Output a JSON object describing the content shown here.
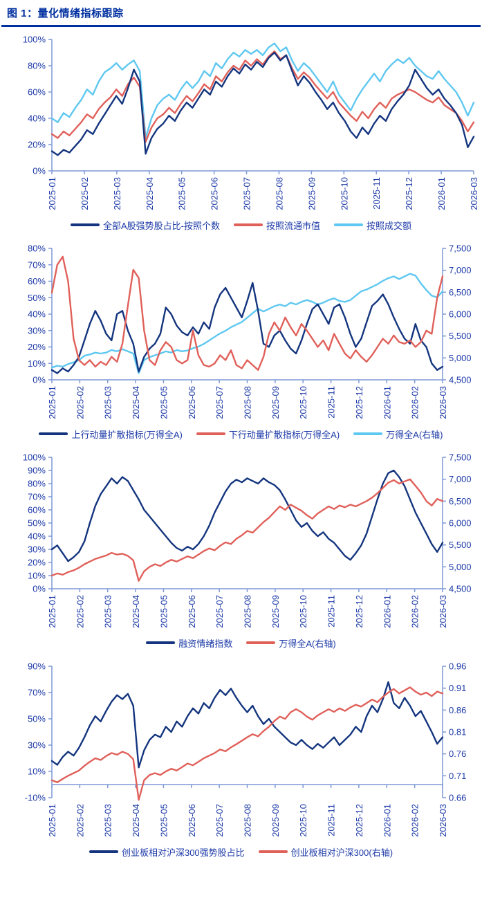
{
  "title": "图 1：量化情绪指标跟踪",
  "colors": {
    "navy": "#14357E",
    "red": "#E0605A",
    "sky": "#5FC8F0",
    "axis_line": "#7D99D6",
    "label": "#1E3BA8",
    "title": "#0030A0"
  },
  "chart_data": [
    {
      "type": "line",
      "grid": false,
      "legend_position": "bottom",
      "left_axis": {
        "min": 0,
        "max": 100,
        "step": 20,
        "format": "percent"
      },
      "right_axis": null,
      "x_ticks": [
        "2025-01",
        "2025-02",
        "2025-03",
        "2025-04",
        "2025-05",
        "2025-06",
        "2025-07",
        "2025-08",
        "2025-09",
        "2025-10",
        "2025-11",
        "2025-12",
        "2026-01",
        "2026-03"
      ],
      "legend": [
        {
          "label": "全部A股强势股占比-按照个数",
          "color": "navy"
        },
        {
          "label": "按照流通市值",
          "color": "red"
        },
        {
          "label": "按照成交额",
          "color": "sky"
        }
      ],
      "series": [
        {
          "name": "按照成交额",
          "color": "sky",
          "axis": "left",
          "values": [
            40,
            37,
            44,
            41,
            48,
            54,
            62,
            58,
            68,
            75,
            78,
            82,
            77,
            81,
            84,
            76,
            25,
            40,
            50,
            55,
            58,
            54,
            62,
            68,
            63,
            68,
            76,
            72,
            82,
            78,
            85,
            90,
            87,
            92,
            89,
            92,
            88,
            94,
            97,
            91,
            94,
            84,
            76,
            82,
            78,
            72,
            66,
            60,
            68,
            58,
            52,
            46,
            55,
            62,
            68,
            74,
            68,
            76,
            81,
            85,
            82,
            86,
            80,
            76,
            72,
            70,
            76,
            70,
            65,
            60,
            52,
            42,
            52
          ]
        },
        {
          "name": "按照流通市值",
          "color": "red",
          "axis": "left",
          "values": [
            28,
            25,
            30,
            27,
            32,
            37,
            43,
            40,
            47,
            52,
            56,
            62,
            57,
            66,
            71,
            64,
            22,
            33,
            40,
            43,
            48,
            44,
            51,
            57,
            53,
            59,
            66,
            62,
            72,
            68,
            75,
            80,
            77,
            84,
            80,
            85,
            81,
            87,
            91,
            85,
            88,
            78,
            70,
            75,
            71,
            65,
            60,
            55,
            60,
            52,
            47,
            42,
            38,
            45,
            40,
            47,
            52,
            48,
            55,
            58,
            60,
            62,
            60,
            57,
            54,
            52,
            56,
            50,
            47,
            44,
            38,
            30,
            37
          ]
        },
        {
          "name": "全部A股强势股占比-按照个数",
          "color": "navy",
          "axis": "left",
          "values": [
            15,
            12,
            16,
            14,
            19,
            24,
            31,
            28,
            36,
            43,
            50,
            57,
            51,
            63,
            77,
            68,
            13,
            25,
            32,
            36,
            42,
            38,
            46,
            52,
            48,
            55,
            62,
            58,
            68,
            64,
            72,
            78,
            74,
            81,
            77,
            83,
            79,
            86,
            90,
            84,
            88,
            76,
            65,
            72,
            67,
            60,
            54,
            47,
            52,
            44,
            38,
            30,
            25,
            33,
            28,
            36,
            42,
            38,
            47,
            53,
            58,
            65,
            77,
            70,
            63,
            58,
            62,
            55,
            50,
            44,
            35,
            18,
            26
          ]
        }
      ]
    },
    {
      "type": "line",
      "grid": false,
      "legend_position": "bottom",
      "left_axis": {
        "min": 0,
        "max": 80,
        "step": 10,
        "format": "percent"
      },
      "right_axis": {
        "min": 4500,
        "max": 7500,
        "step": 500,
        "format": "thousands"
      },
      "x_ticks": [
        "2025-01",
        "2025-02",
        "2025-03",
        "2025-04",
        "2025-05",
        "2025-06",
        "2025-07",
        "2025-08",
        "2025-09",
        "2025-10",
        "2025-11",
        "2025-12",
        "2026-01",
        "2026-02",
        "2026-03"
      ],
      "legend": [
        {
          "label": "上行动量扩散指标(万得全A)",
          "color": "navy"
        },
        {
          "label": "下行动量扩散指标(万得全A)",
          "color": "red"
        },
        {
          "label": "万得全A(右轴)",
          "color": "sky"
        }
      ],
      "series": [
        {
          "name": "万得全A(右轴)",
          "color": "sky",
          "axis": "right",
          "values": [
            4780,
            4820,
            4800,
            4860,
            4900,
            4950,
            5050,
            5080,
            5120,
            5100,
            5120,
            5180,
            5150,
            5200,
            5150,
            5100,
            4650,
            4950,
            5020,
            5060,
            5100,
            5150,
            5120,
            5180,
            5150,
            5170,
            5220,
            5260,
            5320,
            5400,
            5480,
            5560,
            5620,
            5700,
            5760,
            5820,
            5920,
            6020,
            6120,
            6060,
            6120,
            6180,
            6220,
            6180,
            6260,
            6220,
            6280,
            6320,
            6280,
            6220,
            6260,
            6320,
            6360,
            6300,
            6280,
            6320,
            6420,
            6520,
            6560,
            6620,
            6680,
            6760,
            6820,
            6860,
            6800,
            6860,
            6920,
            6880,
            6700,
            6550,
            6420,
            6380,
            6520
          ]
        },
        {
          "name": "上行动量扩散指标(万得全A)",
          "color": "navy",
          "axis": "left",
          "values": [
            6,
            4,
            7,
            5,
            9,
            14,
            24,
            34,
            42,
            36,
            28,
            24,
            40,
            42,
            30,
            22,
            5,
            14,
            19,
            22,
            28,
            44,
            40,
            33,
            29,
            27,
            32,
            28,
            35,
            31,
            44,
            52,
            56,
            50,
            44,
            38,
            48,
            59,
            42,
            22,
            20,
            27,
            30,
            24,
            19,
            16,
            24,
            34,
            43,
            46,
            40,
            34,
            44,
            46,
            38,
            28,
            20,
            25,
            35,
            45,
            48,
            52,
            46,
            38,
            31,
            25,
            22,
            34,
            24,
            20,
            10,
            6,
            8
          ]
        },
        {
          "name": "下行动量扩散指标(万得全A)",
          "color": "red",
          "axis": "left",
          "values": [
            53,
            70,
            75,
            60,
            25,
            12,
            9,
            12,
            8,
            11,
            9,
            14,
            11,
            22,
            45,
            67,
            62,
            30,
            12,
            9,
            18,
            23,
            20,
            12,
            10,
            12,
            30,
            15,
            9,
            8,
            10,
            15,
            12,
            18,
            9,
            7,
            12,
            9,
            6,
            14,
            28,
            35,
            30,
            38,
            32,
            27,
            34,
            30,
            25,
            20,
            24,
            18,
            28,
            22,
            16,
            13,
            18,
            14,
            11,
            15,
            20,
            25,
            22,
            27,
            23,
            22,
            24,
            20,
            23,
            30,
            28,
            50,
            63
          ]
        }
      ]
    },
    {
      "type": "line",
      "grid": false,
      "legend_position": "bottom",
      "left_axis": {
        "min": 0,
        "max": 100,
        "step": 10,
        "format": "percent"
      },
      "right_axis": {
        "min": 4500,
        "max": 7500,
        "step": 500,
        "format": "thousands"
      },
      "x_ticks": [
        "2025-01",
        "2025-02",
        "2025-03",
        "2025-04",
        "2025-05",
        "2025-06",
        "2025-07",
        "2025-08",
        "2025-09",
        "2025-10",
        "2025-11",
        "2025-12",
        "2026-01",
        "2026-02",
        "2026-03"
      ],
      "legend": [
        {
          "label": "融资情绪指数",
          "color": "navy"
        },
        {
          "label": "万得全A(右轴)",
          "color": "red"
        }
      ],
      "series": [
        {
          "name": "融资情绪指数",
          "color": "navy",
          "axis": "left",
          "values": [
            30,
            33,
            27,
            21,
            24,
            28,
            36,
            50,
            63,
            72,
            78,
            84,
            80,
            85,
            82,
            75,
            68,
            60,
            55,
            50,
            45,
            40,
            35,
            31,
            29,
            32,
            30,
            34,
            40,
            48,
            58,
            66,
            74,
            80,
            83,
            81,
            84,
            82,
            80,
            84,
            81,
            79,
            75,
            68,
            60,
            52,
            47,
            50,
            44,
            40,
            43,
            38,
            35,
            30,
            25,
            22,
            27,
            33,
            42,
            55,
            68,
            80,
            88,
            90,
            85,
            78,
            68,
            58,
            50,
            42,
            34,
            28,
            35
          ]
        },
        {
          "name": "万得全A(右轴)",
          "color": "red",
          "axis": "right",
          "values": [
            4800,
            4850,
            4820,
            4880,
            4920,
            4980,
            5060,
            5120,
            5180,
            5220,
            5260,
            5320,
            5280,
            5300,
            5250,
            5150,
            4680,
            4900,
            5000,
            5060,
            5020,
            5100,
            5160,
            5120,
            5180,
            5240,
            5200,
            5280,
            5360,
            5420,
            5380,
            5480,
            5560,
            5520,
            5640,
            5720,
            5820,
            5780,
            5900,
            6020,
            6120,
            6250,
            6380,
            6300,
            6420,
            6350,
            6280,
            6180,
            6100,
            6220,
            6300,
            6380,
            6320,
            6400,
            6360,
            6420,
            6380,
            6440,
            6500,
            6580,
            6680,
            6800,
            6920,
            6980,
            6900,
            6950,
            7000,
            6850,
            6700,
            6500,
            6400,
            6550,
            6500
          ]
        }
      ]
    },
    {
      "type": "line",
      "grid": false,
      "legend_position": "bottom",
      "left_axis": {
        "min": -10,
        "max": 90,
        "step": 20,
        "format": "percent"
      },
      "right_axis": {
        "min": 0.66,
        "max": 0.96,
        "step": 0.05,
        "format": "fixed2"
      },
      "x_ticks": [
        "2025-01",
        "2025-02",
        "2025-03",
        "2025-04",
        "2025-05",
        "2025-06",
        "2025-07",
        "2025-08",
        "2025-09",
        "2025-10",
        "2025-11",
        "2025-12",
        "2026-01",
        "2026-02",
        "2026-03"
      ],
      "legend": [
        {
          "label": "创业板相对沪深300强势股占比",
          "color": "navy"
        },
        {
          "label": "创业板相对沪深300(右轴)",
          "color": "red"
        }
      ],
      "series": [
        {
          "name": "创业板相对沪深300强势股占比",
          "color": "navy",
          "axis": "left",
          "values": [
            18,
            15,
            21,
            25,
            22,
            28,
            36,
            45,
            52,
            48,
            56,
            63,
            68,
            65,
            69,
            60,
            13,
            26,
            34,
            38,
            36,
            44,
            40,
            48,
            44,
            52,
            58,
            54,
            62,
            58,
            66,
            72,
            68,
            73,
            66,
            60,
            55,
            60,
            52,
            46,
            50,
            44,
            40,
            36,
            32,
            30,
            34,
            30,
            27,
            31,
            28,
            32,
            36,
            30,
            34,
            38,
            44,
            40,
            52,
            60,
            55,
            65,
            78,
            62,
            58,
            66,
            60,
            52,
            56,
            48,
            40,
            31,
            36
          ]
        },
        {
          "name": "创业板相对沪深300(右轴)",
          "color": "red",
          "axis": "right",
          "values": [
            0.7,
            0.695,
            0.703,
            0.71,
            0.716,
            0.722,
            0.733,
            0.742,
            0.75,
            0.746,
            0.755,
            0.762,
            0.758,
            0.765,
            0.76,
            0.748,
            0.655,
            0.7,
            0.712,
            0.716,
            0.712,
            0.72,
            0.726,
            0.722,
            0.73,
            0.738,
            0.734,
            0.742,
            0.75,
            0.756,
            0.762,
            0.77,
            0.766,
            0.775,
            0.782,
            0.79,
            0.798,
            0.805,
            0.8,
            0.812,
            0.822,
            0.835,
            0.845,
            0.84,
            0.855,
            0.862,
            0.855,
            0.845,
            0.838,
            0.848,
            0.855,
            0.862,
            0.856,
            0.864,
            0.858,
            0.866,
            0.872,
            0.868,
            0.876,
            0.884,
            0.878,
            0.89,
            0.9,
            0.908,
            0.898,
            0.905,
            0.912,
            0.902,
            0.895,
            0.9,
            0.892,
            0.902,
            0.898
          ]
        }
      ]
    }
  ]
}
